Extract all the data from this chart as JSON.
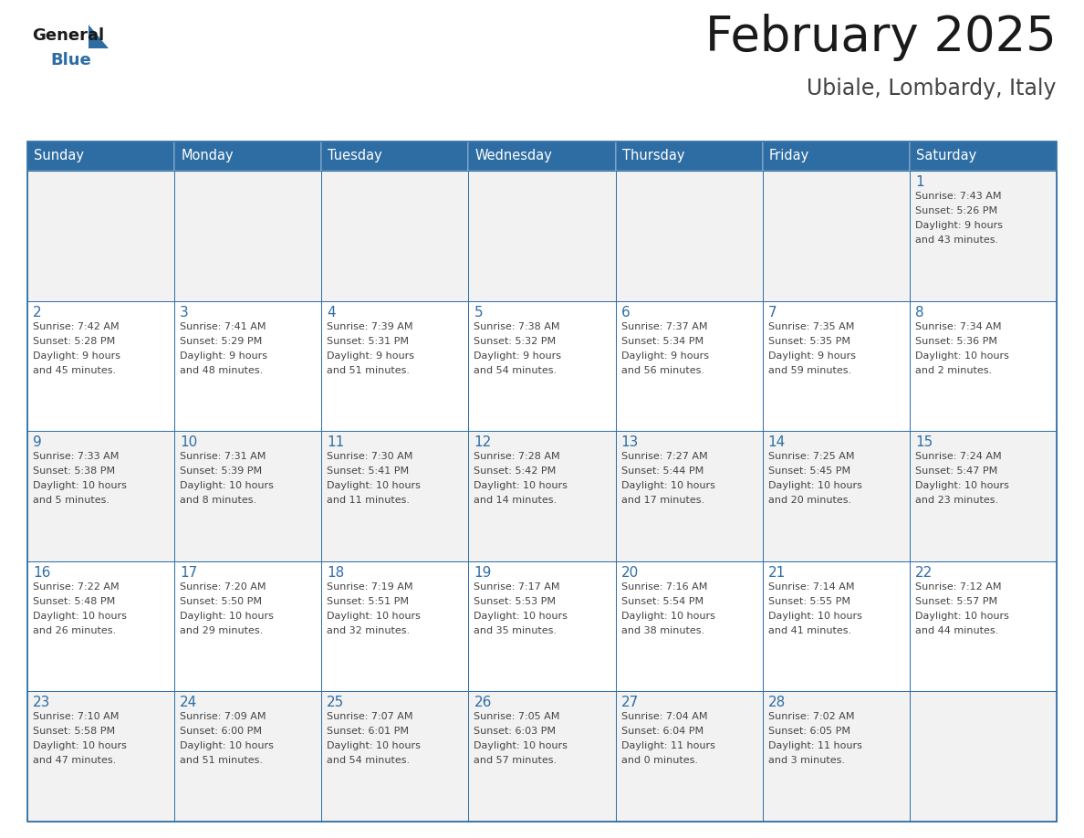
{
  "title": "February 2025",
  "subtitle": "Ubiale, Lombardy, Italy",
  "header_bg": "#2E6DA4",
  "header_text_color": "#FFFFFF",
  "cell_bg_odd": "#F2F2F2",
  "cell_bg_even": "#FFFFFF",
  "border_color": "#2E6DA4",
  "day_headers": [
    "Sunday",
    "Monday",
    "Tuesday",
    "Wednesday",
    "Thursday",
    "Friday",
    "Saturday"
  ],
  "title_color": "#1a1a1a",
  "subtitle_color": "#444444",
  "day_num_color": "#2E6DA4",
  "info_color": "#444444",
  "logo_general_color": "#1a1a1a",
  "logo_blue_color": "#2E6DA4",
  "fig_width": 11.88,
  "fig_height": 9.18,
  "dpi": 100,
  "weeks": [
    [
      {
        "day": null,
        "info": ""
      },
      {
        "day": null,
        "info": ""
      },
      {
        "day": null,
        "info": ""
      },
      {
        "day": null,
        "info": ""
      },
      {
        "day": null,
        "info": ""
      },
      {
        "day": null,
        "info": ""
      },
      {
        "day": 1,
        "info": "Sunrise: 7:43 AM\nSunset: 5:26 PM\nDaylight: 9 hours\nand 43 minutes."
      }
    ],
    [
      {
        "day": 2,
        "info": "Sunrise: 7:42 AM\nSunset: 5:28 PM\nDaylight: 9 hours\nand 45 minutes."
      },
      {
        "day": 3,
        "info": "Sunrise: 7:41 AM\nSunset: 5:29 PM\nDaylight: 9 hours\nand 48 minutes."
      },
      {
        "day": 4,
        "info": "Sunrise: 7:39 AM\nSunset: 5:31 PM\nDaylight: 9 hours\nand 51 minutes."
      },
      {
        "day": 5,
        "info": "Sunrise: 7:38 AM\nSunset: 5:32 PM\nDaylight: 9 hours\nand 54 minutes."
      },
      {
        "day": 6,
        "info": "Sunrise: 7:37 AM\nSunset: 5:34 PM\nDaylight: 9 hours\nand 56 minutes."
      },
      {
        "day": 7,
        "info": "Sunrise: 7:35 AM\nSunset: 5:35 PM\nDaylight: 9 hours\nand 59 minutes."
      },
      {
        "day": 8,
        "info": "Sunrise: 7:34 AM\nSunset: 5:36 PM\nDaylight: 10 hours\nand 2 minutes."
      }
    ],
    [
      {
        "day": 9,
        "info": "Sunrise: 7:33 AM\nSunset: 5:38 PM\nDaylight: 10 hours\nand 5 minutes."
      },
      {
        "day": 10,
        "info": "Sunrise: 7:31 AM\nSunset: 5:39 PM\nDaylight: 10 hours\nand 8 minutes."
      },
      {
        "day": 11,
        "info": "Sunrise: 7:30 AM\nSunset: 5:41 PM\nDaylight: 10 hours\nand 11 minutes."
      },
      {
        "day": 12,
        "info": "Sunrise: 7:28 AM\nSunset: 5:42 PM\nDaylight: 10 hours\nand 14 minutes."
      },
      {
        "day": 13,
        "info": "Sunrise: 7:27 AM\nSunset: 5:44 PM\nDaylight: 10 hours\nand 17 minutes."
      },
      {
        "day": 14,
        "info": "Sunrise: 7:25 AM\nSunset: 5:45 PM\nDaylight: 10 hours\nand 20 minutes."
      },
      {
        "day": 15,
        "info": "Sunrise: 7:24 AM\nSunset: 5:47 PM\nDaylight: 10 hours\nand 23 minutes."
      }
    ],
    [
      {
        "day": 16,
        "info": "Sunrise: 7:22 AM\nSunset: 5:48 PM\nDaylight: 10 hours\nand 26 minutes."
      },
      {
        "day": 17,
        "info": "Sunrise: 7:20 AM\nSunset: 5:50 PM\nDaylight: 10 hours\nand 29 minutes."
      },
      {
        "day": 18,
        "info": "Sunrise: 7:19 AM\nSunset: 5:51 PM\nDaylight: 10 hours\nand 32 minutes."
      },
      {
        "day": 19,
        "info": "Sunrise: 7:17 AM\nSunset: 5:53 PM\nDaylight: 10 hours\nand 35 minutes."
      },
      {
        "day": 20,
        "info": "Sunrise: 7:16 AM\nSunset: 5:54 PM\nDaylight: 10 hours\nand 38 minutes."
      },
      {
        "day": 21,
        "info": "Sunrise: 7:14 AM\nSunset: 5:55 PM\nDaylight: 10 hours\nand 41 minutes."
      },
      {
        "day": 22,
        "info": "Sunrise: 7:12 AM\nSunset: 5:57 PM\nDaylight: 10 hours\nand 44 minutes."
      }
    ],
    [
      {
        "day": 23,
        "info": "Sunrise: 7:10 AM\nSunset: 5:58 PM\nDaylight: 10 hours\nand 47 minutes."
      },
      {
        "day": 24,
        "info": "Sunrise: 7:09 AM\nSunset: 6:00 PM\nDaylight: 10 hours\nand 51 minutes."
      },
      {
        "day": 25,
        "info": "Sunrise: 7:07 AM\nSunset: 6:01 PM\nDaylight: 10 hours\nand 54 minutes."
      },
      {
        "day": 26,
        "info": "Sunrise: 7:05 AM\nSunset: 6:03 PM\nDaylight: 10 hours\nand 57 minutes."
      },
      {
        "day": 27,
        "info": "Sunrise: 7:04 AM\nSunset: 6:04 PM\nDaylight: 11 hours\nand 0 minutes."
      },
      {
        "day": 28,
        "info": "Sunrise: 7:02 AM\nSunset: 6:05 PM\nDaylight: 11 hours\nand 3 minutes."
      },
      {
        "day": null,
        "info": ""
      }
    ]
  ]
}
